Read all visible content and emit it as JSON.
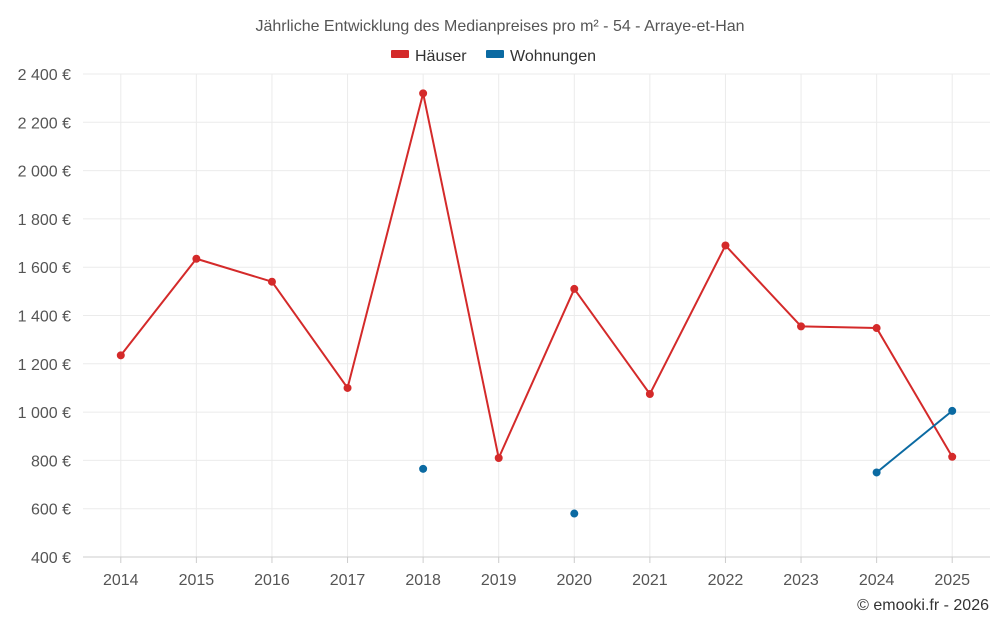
{
  "chart_data": {
    "type": "line",
    "title": "Jährliche Entwicklung des Medianpreises pro m² - 54 - Arraye-et-Han",
    "categories": [
      "2014",
      "2015",
      "2016",
      "2017",
      "2018",
      "2019",
      "2020",
      "2021",
      "2022",
      "2023",
      "2024",
      "2025"
    ],
    "ylim": [
      400,
      2400
    ],
    "yticks": [
      400,
      600,
      800,
      1000,
      1200,
      1400,
      1600,
      1800,
      2000,
      2200,
      2400
    ],
    "ytick_labels": [
      "400 €",
      "600 €",
      "800 €",
      "1 000 €",
      "1 200 €",
      "1 400 €",
      "1 600 €",
      "1 800 €",
      "2 000 €",
      "2 200 €",
      "2 400 €"
    ],
    "grid": true,
    "legend_position": "top-center",
    "series": [
      {
        "name": "Häuser",
        "color": "#d42a2a",
        "values": [
          1235,
          1635,
          1540,
          1100,
          2320,
          810,
          1510,
          1075,
          1690,
          1355,
          1348,
          815
        ]
      },
      {
        "name": "Wohnungen",
        "color": "#0b6aa2",
        "values": [
          null,
          null,
          null,
          null,
          765,
          null,
          580,
          null,
          null,
          null,
          750,
          1005
        ]
      }
    ],
    "credit": "© emooki.fr - 2026"
  }
}
